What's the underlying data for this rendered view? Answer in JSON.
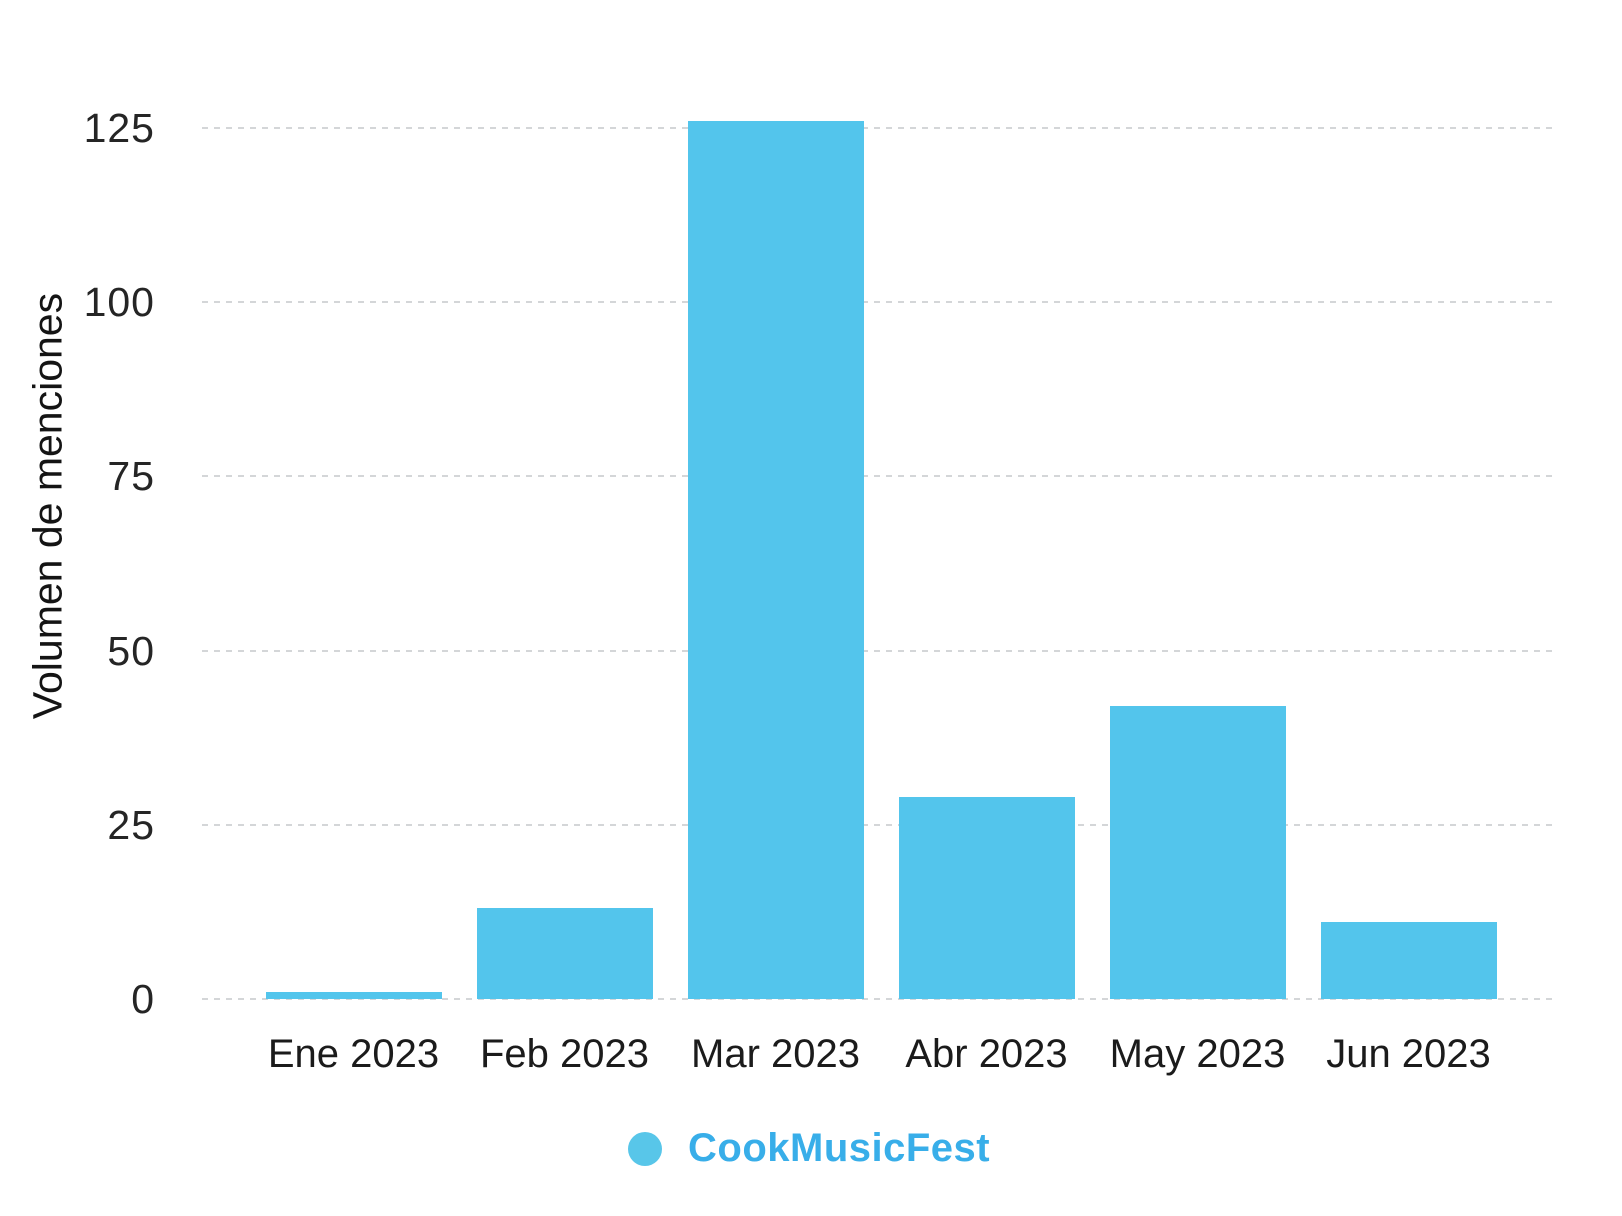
{
  "chart_data": {
    "type": "bar",
    "title": "",
    "categories": [
      "Ene 2023",
      "Feb 2023",
      "Mar 2023",
      "Abr 2023",
      "May 2023",
      "Jun 2023"
    ],
    "series": [
      {
        "name": "CookMusicFest",
        "color": "#53c5ec",
        "values": [
          1,
          13,
          126,
          29,
          42,
          11
        ]
      }
    ],
    "xlabel": "",
    "ylabel": "Volumen de menciones",
    "yticks": [
      0,
      25,
      50,
      75,
      100,
      125
    ],
    "ylim": [
      0,
      125
    ],
    "grid": "horizontal-dashed",
    "legend_position": "bottom"
  },
  "colors": {
    "bar_fill": "#53c5ec",
    "legend_dot": "#58c6e9",
    "legend_text": "#38aee9",
    "gridline": "#d4d6d8",
    "axis_text": "#1b1b1b",
    "background": "#ffffff"
  }
}
